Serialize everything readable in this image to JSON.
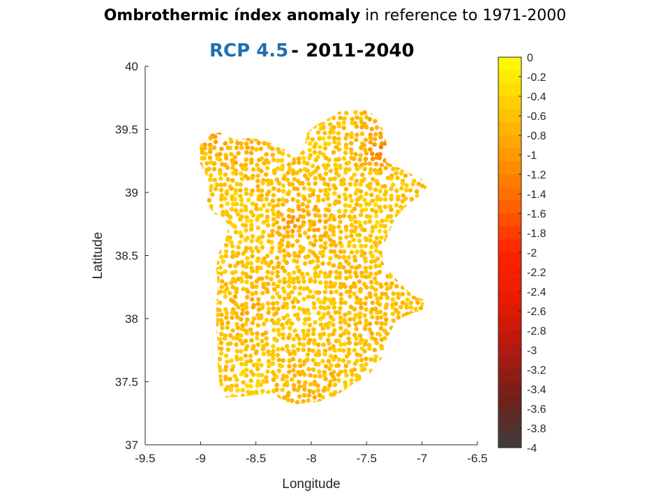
{
  "title": {
    "bold": "Ombrothermic índex anomaly",
    "rest": " in reference to 1971-2000"
  },
  "subtitle": {
    "scenario": "RCP 4.5",
    "separator": "-",
    "period": "2011-2040",
    "scenario_color": "#1f6fb0"
  },
  "chart_data": {
    "type": "scatter",
    "xlabel": "Longitude",
    "ylabel": "Latitude",
    "xlim": [
      -9.5,
      -6.5
    ],
    "ylim": [
      37,
      40
    ],
    "xticks": [
      "-9.5",
      "-9",
      "-8.5",
      "-8",
      "-7.5",
      "-7",
      "-6.5"
    ],
    "yticks": [
      "37",
      "37.5",
      "38",
      "38.5",
      "39",
      "39.5",
      "40"
    ],
    "grid": false,
    "colorbar": {
      "min": -4,
      "max": 0,
      "levels": 30,
      "ticks": [
        "0",
        "-0.2",
        "-0.4",
        "-0.6",
        "-0.8",
        "-1",
        "-1.2",
        "-1.4",
        "-1.6",
        "-1.8",
        "-2",
        "-2.2",
        "-2.4",
        "-2.6",
        "-2.8",
        "-3",
        "-3.2",
        "-3.4",
        "-3.6",
        "-3.8",
        "-4"
      ],
      "colormap_stops": [
        "#ffff00",
        "#ffcc00",
        "#ff9900",
        "#ff6600",
        "#ff2200",
        "#e81a00",
        "#b01a10",
        "#702018",
        "#3e3e3e"
      ]
    },
    "typical_value_range": [
      -1.3,
      -0.3
    ],
    "hotspots": [
      {
        "lon": -7.38,
        "lat": 39.33,
        "value": -1.15
      },
      {
        "lon": -8.85,
        "lat": 39.45,
        "value": -1.0
      },
      {
        "lon": -8.2,
        "lat": 38.75,
        "value": -0.85
      }
    ]
  }
}
